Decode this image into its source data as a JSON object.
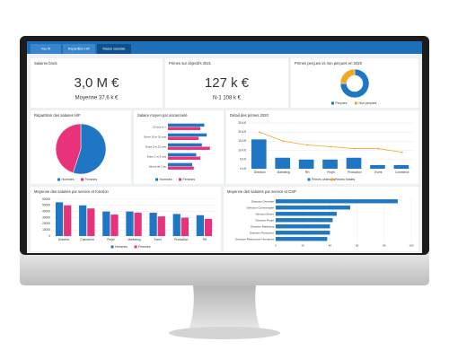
{
  "tabs": [
    "Vue M",
    "Répartition H/F",
    "Masse salariale"
  ],
  "kpis": [
    {
      "title": "Salaires bruts",
      "value": "3,0 M €",
      "sub": "Moyenne 37,6 k €"
    },
    {
      "title": "Primes sur objectifs 2021",
      "value": "127 k €",
      "sub": "N-1 108 k €"
    }
  ],
  "donut": {
    "type": "pie",
    "title": "Primes perçues vs non perçues en 2020",
    "categories": [
      "Perçues",
      "Non perçues"
    ],
    "values": [
      75,
      25
    ],
    "colors": [
      "#1f77c4",
      "#f5a623"
    ],
    "hole": true
  },
  "pie": {
    "type": "pie",
    "title": "Répartition des salaires H/F",
    "categories": [
      "Hommes",
      "Femmes"
    ],
    "values": [
      55,
      45
    ],
    "colors": [
      "#1f77c4",
      "#e8337a"
    ]
  },
  "anciennete": {
    "type": "hbar",
    "title": "Salaire moyen par ancienneté",
    "categories": [
      "20 ans et +",
      "Entre 10 et 20 ans",
      "Entre 5 et 10 ans",
      "Entre 1 et 5 ans",
      "Moins de 1 an"
    ],
    "series": [
      {
        "name": "Hommes",
        "color": "#1f77c4",
        "values": [
          45,
          48,
          42,
          35,
          30
        ]
      },
      {
        "name": "Femmes",
        "color": "#e8337a",
        "values": [
          40,
          38,
          52,
          40,
          32
        ]
      }
    ],
    "xlim": [
      0,
      60
    ]
  },
  "primes": {
    "type": "bar",
    "title": "Détail des primes 2020",
    "categories": [
      "Direction",
      "Marketing",
      "RH",
      "Projet",
      "Production",
      "Event",
      "Commerce"
    ],
    "series": [
      {
        "name": "Primes obtenues",
        "color": "#1f77c4",
        "values": [
          16,
          6,
          5,
          5,
          6,
          2,
          2
        ]
      },
      {
        "name": "Primes totales",
        "color": "#f5a623",
        "kind": "line",
        "values": [
          20,
          15,
          13,
          12,
          11,
          11,
          9
        ]
      }
    ],
    "ylim": [
      0,
      25
    ],
    "yticks": [
      {
        "value": 0,
        "label": "0 k €"
      },
      {
        "value": 5,
        "label": "5 k €"
      },
      {
        "value": 10,
        "label": "10 k €"
      },
      {
        "value": 15,
        "label": "15 k €"
      },
      {
        "value": 20,
        "label": "20 k €"
      },
      {
        "value": 25,
        "label": "25 k €"
      }
    ]
  },
  "service": {
    "type": "bar",
    "title": "Moyenne des salaires par service et fonction",
    "categories": [
      "Direction",
      "Commerce",
      "Projet",
      "Marketing",
      "Event",
      "Production",
      "RH"
    ],
    "series": [
      {
        "name": "Hommes",
        "color": "#1f77c4",
        "values": [
          55000,
          50000,
          40000,
          40000,
          38000,
          36000,
          34000
        ]
      },
      {
        "name": "Femmes",
        "color": "#e8337a",
        "values": [
          50000,
          45000,
          35000,
          38000,
          32000,
          30000,
          28000
        ]
      }
    ],
    "ylim": [
      0,
      60000
    ],
    "yticks": [
      0,
      10000,
      20000,
      30000,
      40000,
      50000,
      60000
    ]
  },
  "csp": {
    "type": "hbar",
    "title": "Moyenne des salaires par service et CSP",
    "categories": [
      "Direction Générale",
      "Direction Commerciale",
      "Direction Event",
      "Direction Projet",
      "Direction Marketing",
      "Direction Production",
      "Direction Ressources Humaines"
    ],
    "series": [
      {
        "color": "#1f77c4",
        "values": [
          90,
          55,
          45,
          42,
          40,
          40,
          38
        ]
      }
    ],
    "xlim": [
      0,
      100
    ],
    "xticks": [
      0,
      20,
      40,
      60,
      80,
      100
    ]
  }
}
